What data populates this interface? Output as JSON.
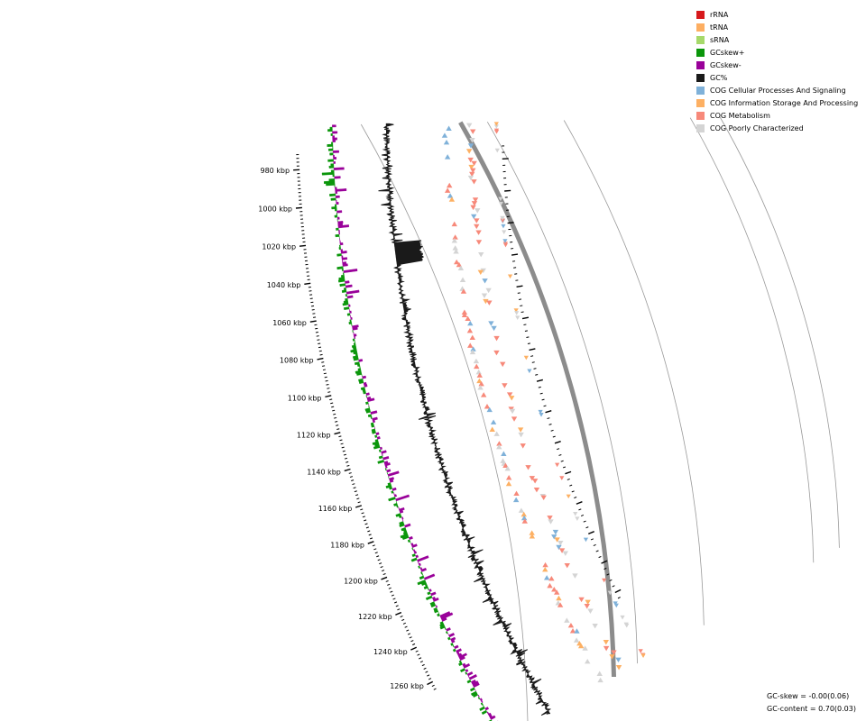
{
  "map": {
    "axis_ticks": [
      {
        "kbp": 980,
        "label": "980 kbp"
      },
      {
        "kbp": 1000,
        "label": "1000 kbp"
      },
      {
        "kbp": 1020,
        "label": "1020 kbp"
      },
      {
        "kbp": 1040,
        "label": "1040 kbp"
      },
      {
        "kbp": 1060,
        "label": "1060 kbp"
      },
      {
        "kbp": 1080,
        "label": "1080 kbp"
      },
      {
        "kbp": 1100,
        "label": "1100 kbp"
      },
      {
        "kbp": 1120,
        "label": "1120 kbp"
      },
      {
        "kbp": 1140,
        "label": "1140 kbp"
      },
      {
        "kbp": 1160,
        "label": "1160 kbp"
      },
      {
        "kbp": 1180,
        "label": "1180 kbp"
      },
      {
        "kbp": 1200,
        "label": "1200 kbp"
      },
      {
        "kbp": 1220,
        "label": "1220 kbp"
      },
      {
        "kbp": 1240,
        "label": "1240 kbp"
      },
      {
        "kbp": 1260,
        "label": "1260 kbp"
      }
    ],
    "colors": {
      "gc_content": "#1a1a1a",
      "gc_skew_pos": "#0a960a",
      "gc_skew_neg": "#990099",
      "backbone": "#8c8c8c",
      "ring_line": "#9a9a9a"
    }
  },
  "legend": {
    "items": [
      {
        "label": "rRNA",
        "color": "#d7191c"
      },
      {
        "label": "tRNA",
        "color": "#fdae61"
      },
      {
        "label": "sRNA",
        "color": "#a6d96a"
      },
      {
        "label": "GCskew+",
        "color": "#0a960a"
      },
      {
        "label": "GCskew-",
        "color": "#990099"
      },
      {
        "label": "GC%",
        "color": "#1a1a1a"
      },
      {
        "label": "COG Cellular Processes And Signaling",
        "color": "#7fb1d9"
      },
      {
        "label": "COG Information Storage And Processing",
        "color": "#fdb063"
      },
      {
        "label": "COG Metabolism",
        "color": "#f7897a"
      },
      {
        "label": "COG Poorly Characterized",
        "color": "#d4d4d4"
      }
    ]
  },
  "stats": {
    "gc_skew": "GC-skew = -0.00(0.06)",
    "gc_content": "GC-content = 0.70(0.03)"
  }
}
